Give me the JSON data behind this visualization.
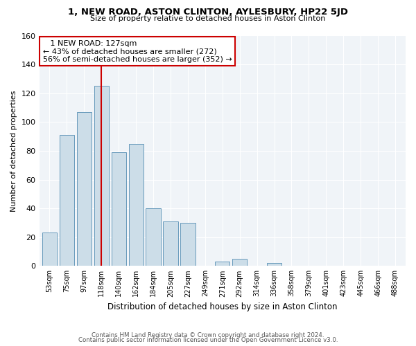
{
  "title": "1, NEW ROAD, ASTON CLINTON, AYLESBURY, HP22 5JD",
  "subtitle": "Size of property relative to detached houses in Aston Clinton",
  "xlabel": "Distribution of detached houses by size in Aston Clinton",
  "ylabel": "Number of detached properties",
  "bar_labels": [
    "53sqm",
    "75sqm",
    "97sqm",
    "118sqm",
    "140sqm",
    "162sqm",
    "184sqm",
    "205sqm",
    "227sqm",
    "249sqm",
    "271sqm",
    "292sqm",
    "314sqm",
    "336sqm",
    "358sqm",
    "379sqm",
    "401sqm",
    "423sqm",
    "445sqm",
    "466sqm",
    "488sqm"
  ],
  "bar_values": [
    23,
    91,
    107,
    125,
    79,
    85,
    40,
    31,
    30,
    0,
    3,
    5,
    0,
    2,
    0,
    0,
    0,
    0,
    0,
    0,
    0
  ],
  "bar_color": "#ccdde8",
  "bar_edge_color": "#6699bb",
  "vline_x": 3,
  "vline_color": "#cc0000",
  "annotation_title": "1 NEW ROAD: 127sqm",
  "annotation_line1": "← 43% of detached houses are smaller (272)",
  "annotation_line2": "56% of semi-detached houses are larger (352) →",
  "box_facecolor": "#ffffff",
  "box_edgecolor": "#cc0000",
  "ylim": [
    0,
    160
  ],
  "yticks": [
    0,
    20,
    40,
    60,
    80,
    100,
    120,
    140,
    160
  ],
  "footer1": "Contains HM Land Registry data © Crown copyright and database right 2024.",
  "footer2": "Contains public sector information licensed under the Open Government Licence v3.0.",
  "bg_color": "#f0f4f8"
}
